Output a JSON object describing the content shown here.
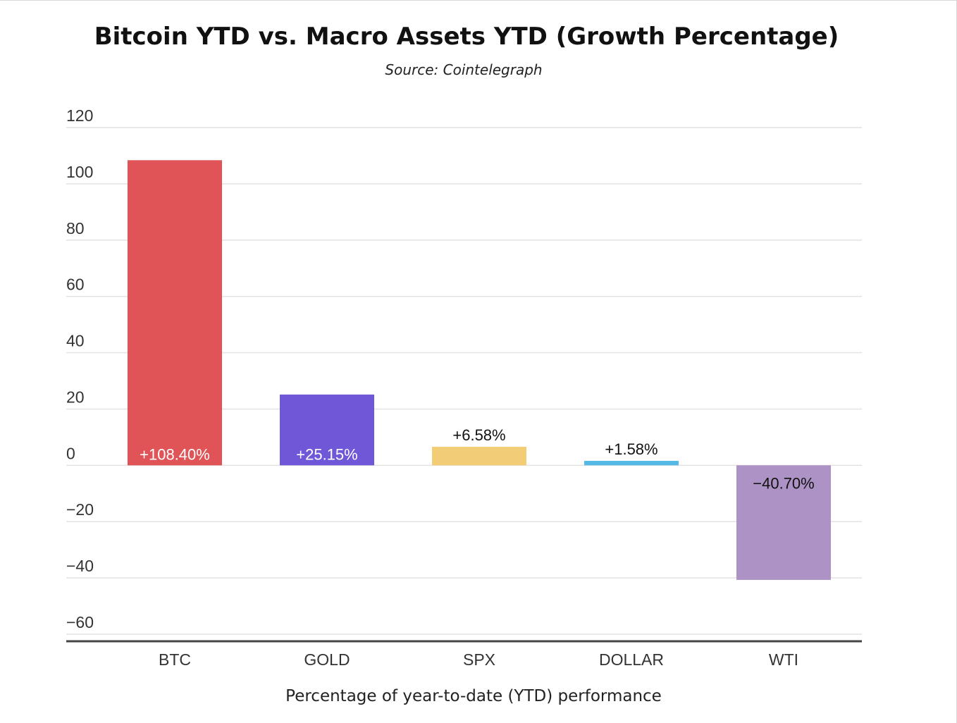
{
  "chart_data": {
    "type": "bar",
    "title": "Bitcoin YTD vs. Macro Assets YTD (Growth Percentage)",
    "subtitle": "Source: Cointelegraph",
    "xlabel": "Percentage of year-to-date (YTD) performance",
    "ylabel": "",
    "ylim": [
      -60,
      120
    ],
    "yticks": [
      {
        "value": 120,
        "label": "120"
      },
      {
        "value": 100,
        "label": "100"
      },
      {
        "value": 80,
        "label": "80"
      },
      {
        "value": 60,
        "label": "60"
      },
      {
        "value": 40,
        "label": "40"
      },
      {
        "value": 20,
        "label": "20"
      },
      {
        "value": 0,
        "label": "0"
      },
      {
        "value": -20,
        "label": "−20"
      },
      {
        "value": -40,
        "label": "−40"
      },
      {
        "value": -60,
        "label": "−60"
      }
    ],
    "grid": true,
    "legend": "none",
    "bars": [
      {
        "category": "BTC",
        "value": 108.4,
        "label": "+108.40%",
        "color": "#e05457",
        "label_color": "#ffffff",
        "label_position": "inside-bottom"
      },
      {
        "category": "GOLD",
        "value": 25.15,
        "label": "+25.15%",
        "color": "#6f57d8",
        "label_color": "#ffffff",
        "label_position": "inside-bottom"
      },
      {
        "category": "SPX",
        "value": 6.58,
        "label": "+6.58%",
        "color": "#f3cd75",
        "label_color": "#111111",
        "label_position": "above"
      },
      {
        "category": "DOLLAR",
        "value": 1.58,
        "label": "+1.58%",
        "color": "#56b8e4",
        "label_color": "#111111",
        "label_position": "above"
      },
      {
        "category": "WTI",
        "value": -40.7,
        "label": "−40.70%",
        "color": "#ad93c5",
        "label_color": "#111111",
        "label_position": "inside-top"
      }
    ]
  }
}
